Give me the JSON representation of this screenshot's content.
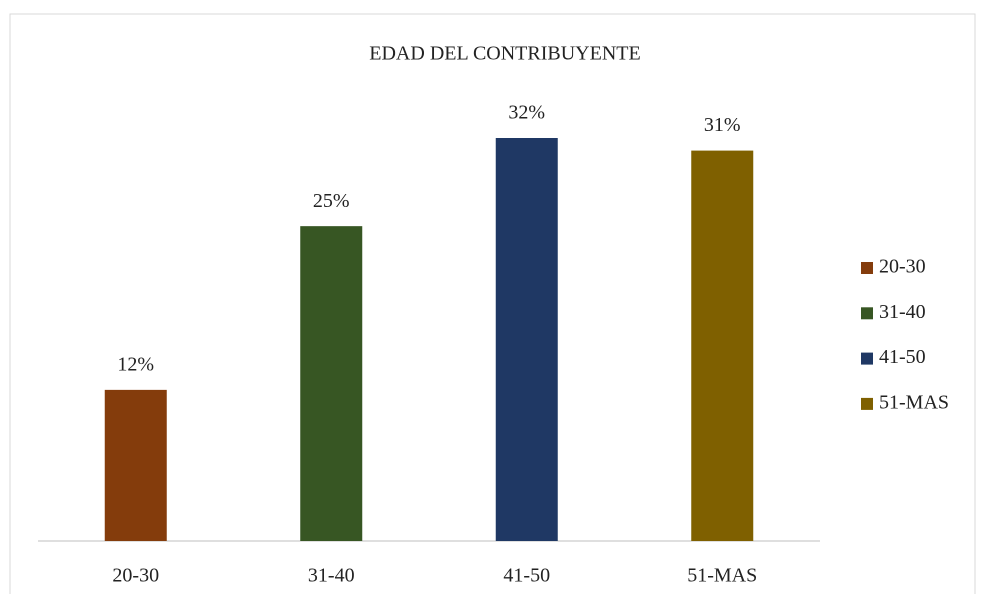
{
  "chart_data": {
    "type": "bar",
    "title": "EDAD DEL CONTRIBUYENTE",
    "categories": [
      "20-30",
      "31-40",
      "41-50",
      "51-MAS"
    ],
    "values": [
      12,
      25,
      32,
      31
    ],
    "value_labels": [
      "12%",
      "25%",
      "32%",
      "31%"
    ],
    "colors": [
      "#843c0c",
      "#375623",
      "#1f3864",
      "#7f6000"
    ],
    "legend": "right"
  }
}
